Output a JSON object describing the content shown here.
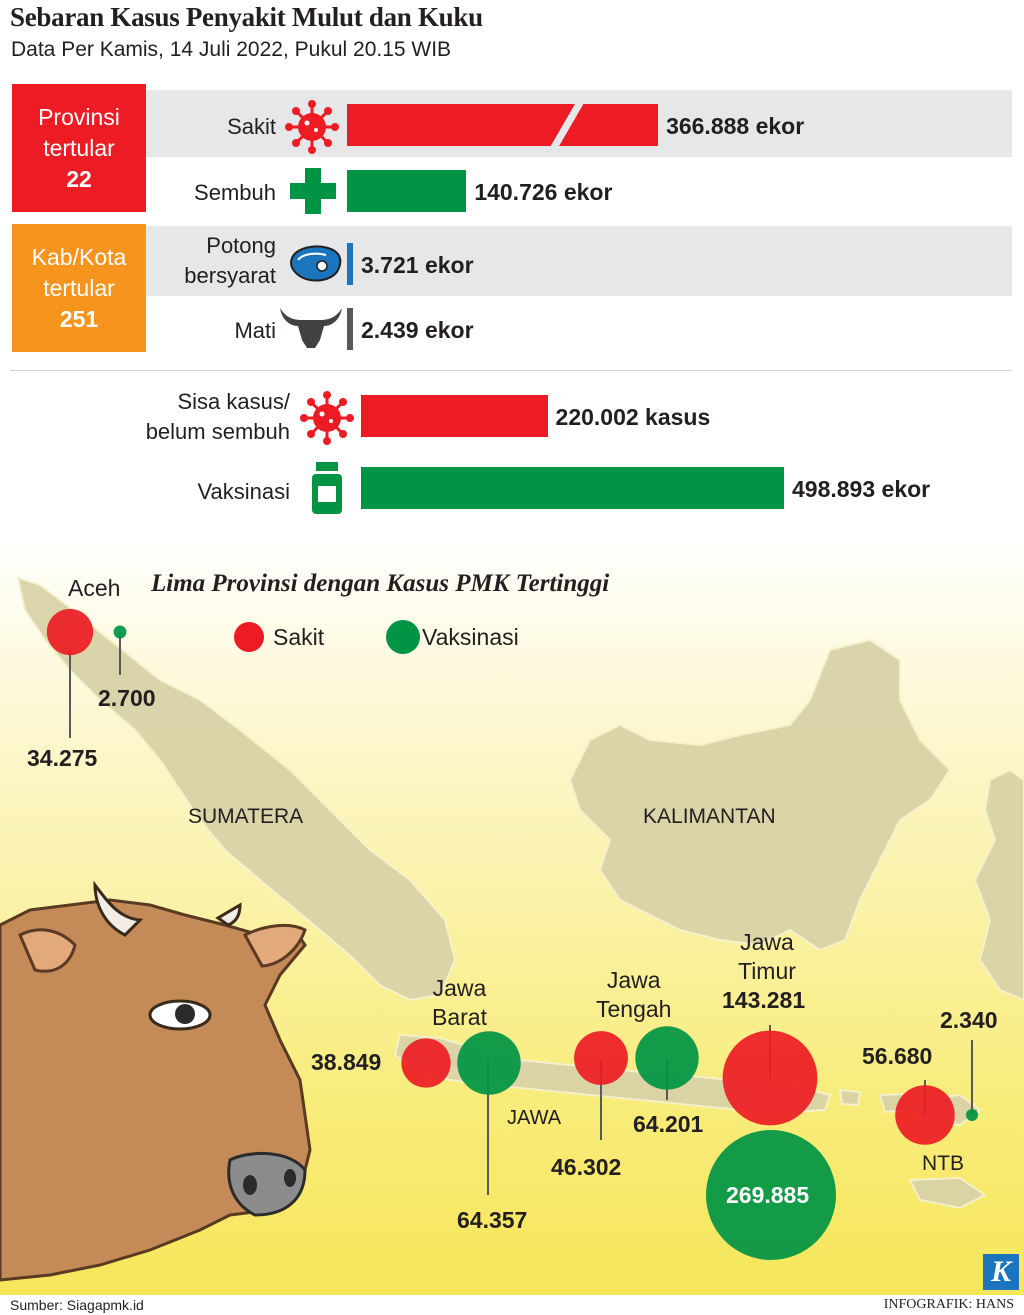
{
  "header": {
    "title": "Sebaran Kasus Penyakit Mulut dan Kuku",
    "subtitle": "Data Per Kamis, 14 Juli 2022, Pukul 20.15 WIB"
  },
  "summary": {
    "provinsi": {
      "line1": "Provinsi",
      "line2": "tertular",
      "value": "22"
    },
    "kabkota": {
      "line1": "Kab/Kota",
      "line2": "tertular",
      "value": "251"
    }
  },
  "colors": {
    "red": "#ed1c24",
    "green": "#009444",
    "orange": "#f7941d",
    "blue": "#1b75bc",
    "gray": "#58595b"
  },
  "chart_data": [
    {
      "type": "bar",
      "categories": [
        "Sakit",
        "Sembuh",
        "Potong bersyarat",
        "Mati",
        "Sisa kasus/ belum sembuh",
        "Vaksinasi"
      ],
      "values": [
        366888,
        140726,
        3721,
        2439,
        220002,
        498893
      ],
      "labels": [
        "366.888 ekor",
        "140.726 ekor",
        "3.721 ekor",
        "2.439 ekor",
        "220.002 kasus",
        "498.893 ekor"
      ],
      "label_lines": [
        [
          "Sakit"
        ],
        [
          "Sembuh"
        ],
        [
          "Potong",
          "bersyarat"
        ],
        [
          "Mati"
        ],
        [
          "Sisa kasus/",
          "belum sembuh"
        ],
        [
          "Vaksinasi"
        ]
      ]
    },
    {
      "type": "bubble",
      "title": "Lima Provinsi dengan Kasus PMK Tertinggi",
      "legend": [
        "Sakit",
        "Vaksinasi"
      ],
      "series": [
        {
          "name": "Sakit",
          "values": [
            34275,
            38849,
            46302,
            143281,
            56680
          ],
          "labels": [
            "34.275",
            "38.849",
            "46.302",
            "143.281",
            "56.680"
          ]
        },
        {
          "name": "Vaksinasi",
          "values": [
            2700,
            64357,
            64201,
            269885,
            2340
          ],
          "labels": [
            "2.700",
            "64.357",
            "64.201",
            "269.885",
            "2.340"
          ]
        }
      ],
      "categories": [
        "Aceh",
        "Jawa Barat",
        "Jawa Tengah",
        "Jawa Timur",
        "NTB"
      ]
    }
  ],
  "map": {
    "region_labels": [
      "SUMATERA",
      "KALIMANTAN",
      "JAWA"
    ],
    "province_labels": {
      "aceh": [
        "Aceh"
      ],
      "jabar": [
        "Jawa",
        "Barat"
      ],
      "jateng": [
        "Jawa",
        "Tengah"
      ],
      "jatim": [
        "Jawa",
        "Timur"
      ],
      "ntb": [
        "NTB"
      ]
    }
  },
  "footer": {
    "source": "Sumber: Siagapmk.id",
    "credit": "INFOGRAFIK: HANS",
    "logo": "K"
  }
}
